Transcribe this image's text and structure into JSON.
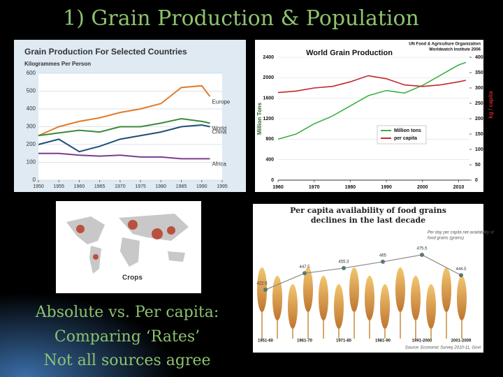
{
  "slide": {
    "title": "1) Grain Production & Population",
    "caption": [
      "Absolute vs. Per capita:",
      "Comparing ‘Rates’",
      "Not all sources agree"
    ],
    "map_label": "Crops"
  },
  "chart_data": [
    {
      "type": "line",
      "title": "Grain Production For Selected Countries",
      "subtitle": "Kilogrammes Per Person",
      "x": [
        1950,
        1955,
        1960,
        1965,
        1970,
        1975,
        1980,
        1985,
        1990,
        1992
      ],
      "xlim": [
        1950,
        1995
      ],
      "xticks": [
        1950,
        1955,
        1960,
        1965,
        1970,
        1975,
        1980,
        1985,
        1990,
        1995
      ],
      "ylim": [
        0,
        600
      ],
      "yticks": [
        0,
        100,
        200,
        300,
        400,
        500,
        600
      ],
      "grid": true,
      "series": [
        {
          "name": "Europe",
          "color": "#e07b2a",
          "values": [
            250,
            300,
            330,
            350,
            380,
            400,
            430,
            520,
            530,
            470
          ]
        },
        {
          "name": "World",
          "color": "#3a8a3a",
          "values": [
            250,
            265,
            280,
            270,
            300,
            300,
            320,
            345,
            330,
            320
          ]
        },
        {
          "name": "China",
          "color": "#1f4e79",
          "values": [
            200,
            230,
            160,
            190,
            230,
            250,
            270,
            300,
            310,
            300
          ]
        },
        {
          "name": "Africa",
          "color": "#7a3d8c",
          "values": [
            150,
            150,
            140,
            135,
            140,
            130,
            130,
            120,
            120,
            120
          ]
        }
      ]
    },
    {
      "type": "line",
      "title": "World Grain Production",
      "source": [
        "UN Food & Agriculture Organization",
        "Worldwatch Institute 2006"
      ],
      "ylabel": "Million Tons",
      "y2label": "kg / capita",
      "x": [
        1960,
        1965,
        1970,
        1975,
        1980,
        1985,
        1990,
        1995,
        2000,
        2005,
        2010,
        2012
      ],
      "xlim": [
        1960,
        2013
      ],
      "xticks": [
        1960,
        1970,
        1980,
        1990,
        2000,
        2010
      ],
      "ylim": [
        0,
        2400
      ],
      "yticks": [
        0,
        400,
        800,
        1200,
        1600,
        2000,
        2400
      ],
      "y2lim": [
        0,
        400
      ],
      "y2ticks": [
        0,
        50,
        100,
        150,
        200,
        250,
        300,
        350,
        400
      ],
      "grid": true,
      "series": [
        {
          "name": "Million tons",
          "color": "#3cb043",
          "values": [
            800,
            900,
            1100,
            1250,
            1450,
            1650,
            1750,
            1700,
            1850,
            2050,
            2250,
            2300
          ]
        },
        {
          "name": "per capita",
          "color": "#c0282d",
          "axis": "y2",
          "values": [
            285,
            290,
            300,
            305,
            320,
            340,
            330,
            310,
            305,
            310,
            320,
            325
          ]
        }
      ]
    },
    {
      "type": "line",
      "title": [
        "Per capita availability of food grains",
        "declines in the last decade"
      ],
      "legend": [
        "Per day per capita net availability of",
        "food grains (grams)"
      ],
      "source": "Source: Economic Survey 2010-11, Govt",
      "categories": [
        "1951-60",
        "1961-70",
        "1971-80",
        "1981-90",
        "1991-2000",
        "2001-2009"
      ],
      "values": [
        422.5,
        447.5,
        455.3,
        465,
        475.5,
        444.5
      ],
      "color": "#8a8a8a"
    }
  ]
}
